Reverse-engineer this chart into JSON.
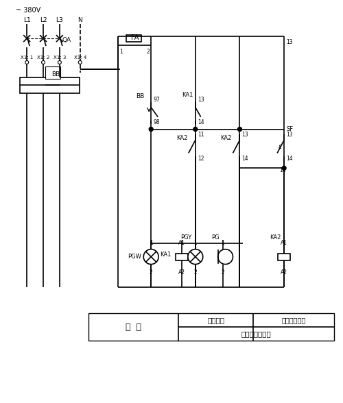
{
  "title": "~ 380V",
  "bg_color": "#ffffff",
  "line_color": "#000000",
  "table_labels": {
    "col1": "电  源",
    "col2_row1": "报警信号",
    "col2_row2": "过负荷声光报警",
    "col3_row1": "声响报警解除"
  }
}
